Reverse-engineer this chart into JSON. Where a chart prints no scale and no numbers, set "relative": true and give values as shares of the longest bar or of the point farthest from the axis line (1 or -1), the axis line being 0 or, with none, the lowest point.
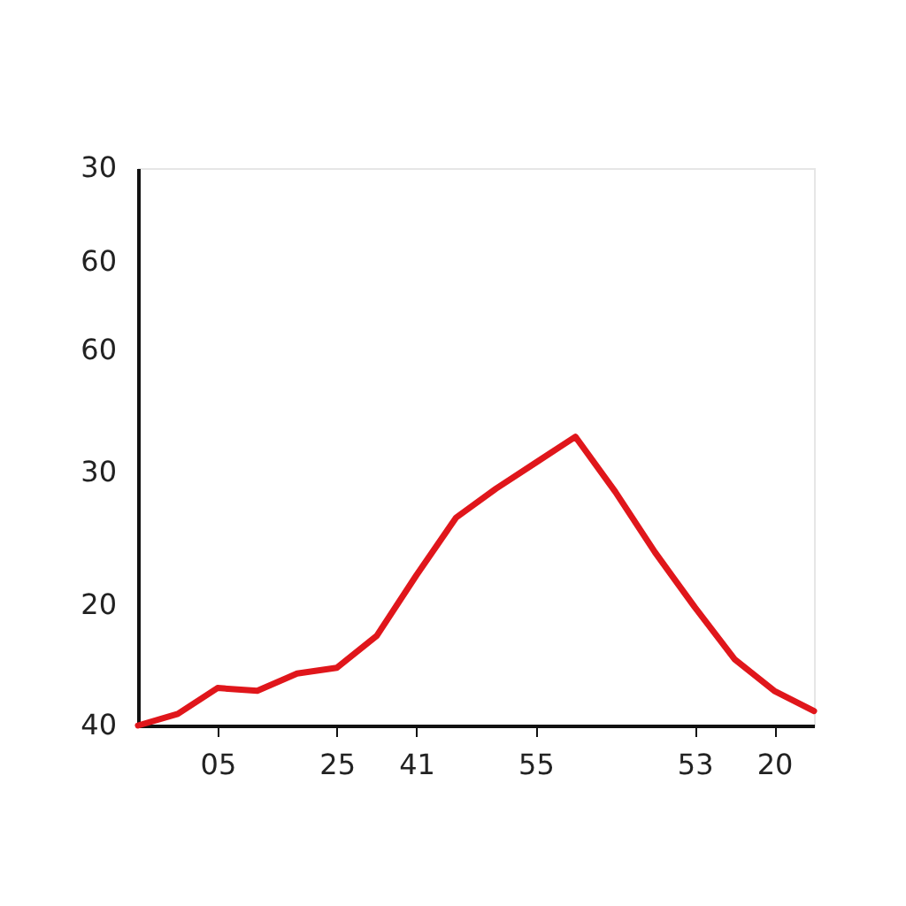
{
  "chart_data": {
    "type": "line",
    "relative": true,
    "categories": [
      null,
      null,
      "05",
      null,
      null,
      "25",
      null,
      "41",
      null,
      null,
      "55",
      null,
      null,
      null,
      "53",
      null,
      "20",
      null
    ],
    "series": [
      {
        "color": "#e0161b",
        "values": [
          0,
          0.04,
          0.13,
          0.12,
          0.18,
          0.2,
          0.31,
          0.52,
          0.72,
          0.82,
          0.91,
          1,
          0.81,
          0.6,
          0.41,
          0.23,
          0.12,
          0.05
        ]
      }
    ],
    "annotations": [
      "30",
      "60",
      "60",
      "30",
      "20",
      "40"
    ],
    "marker": "none",
    "line_style": "solid"
  }
}
